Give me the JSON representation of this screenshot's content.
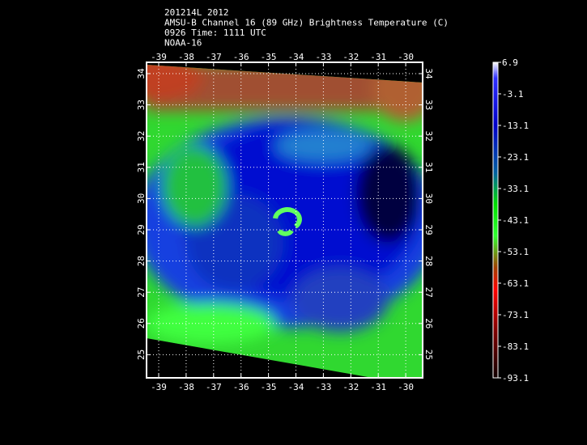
{
  "header": {
    "lines": [
      "201214L 2012",
      "AMSU-B Channel 16 (89 GHz) Brightness Temperature (C)",
      "0926 Time: 1111 UTC",
      "NOAA-16"
    ]
  },
  "map": {
    "lon_ticks": [
      "-39",
      "-38",
      "-37",
      "-36",
      "-35",
      "-34",
      "-33",
      "-32",
      "-31",
      "-30"
    ],
    "lat_ticks": [
      "34",
      "33",
      "32",
      "31",
      "30",
      "29",
      "28",
      "27",
      "26",
      "25"
    ]
  },
  "colorbar": {
    "ticks": [
      "6.9",
      "-3.1",
      "-13.1",
      "-23.1",
      "-33.1",
      "-43.1",
      "-53.1",
      "-63.1",
      "-73.1",
      "-83.1",
      "-93.1"
    ]
  }
}
